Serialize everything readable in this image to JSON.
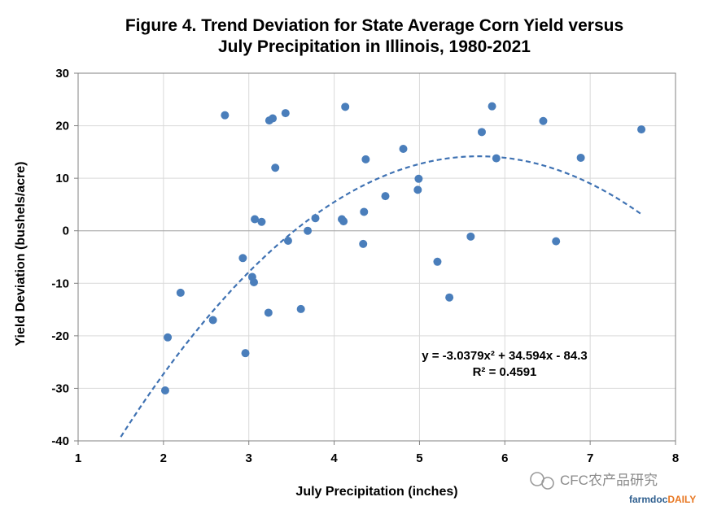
{
  "chart_data": {
    "type": "scatter",
    "title_line1": "Figure 4. Trend Deviation for State Average Corn Yield versus",
    "title_line2": "July Precipitation in Illinois, 1980-2021",
    "xlabel": "July Precipitation (inches)",
    "ylabel": "Yield Deviation (bushels/acre)",
    "xlim": [
      1,
      8
    ],
    "ylim": [
      -40,
      30
    ],
    "xticks": [
      1,
      2,
      3,
      4,
      5,
      6,
      7,
      8
    ],
    "yticks": [
      -40,
      -30,
      -20,
      -10,
      0,
      10,
      20,
      30
    ],
    "grid": true,
    "marker_color": "#4a7ebb",
    "trendline_color": "#3f72b3",
    "points": [
      [
        2.02,
        -30.4
      ],
      [
        2.05,
        -20.3
      ],
      [
        2.2,
        -11.8
      ],
      [
        2.58,
        -17.0
      ],
      [
        2.72,
        22.0
      ],
      [
        2.93,
        -5.2
      ],
      [
        2.96,
        -23.3
      ],
      [
        3.04,
        -8.8
      ],
      [
        3.06,
        -9.8
      ],
      [
        3.07,
        2.2
      ],
      [
        3.15,
        1.7
      ],
      [
        3.23,
        -15.6
      ],
      [
        3.24,
        21.0
      ],
      [
        3.28,
        21.4
      ],
      [
        3.31,
        12.0
      ],
      [
        3.43,
        22.4
      ],
      [
        3.46,
        -1.9
      ],
      [
        3.61,
        -14.9
      ],
      [
        3.69,
        0.0
      ],
      [
        3.78,
        2.4
      ],
      [
        4.09,
        2.2
      ],
      [
        4.11,
        1.8
      ],
      [
        4.13,
        23.6
      ],
      [
        4.34,
        -2.5
      ],
      [
        4.35,
        3.6
      ],
      [
        4.37,
        13.6
      ],
      [
        4.6,
        6.6
      ],
      [
        4.81,
        15.6
      ],
      [
        4.98,
        7.8
      ],
      [
        4.99,
        9.9
      ],
      [
        5.21,
        -5.9
      ],
      [
        5.35,
        -12.7
      ],
      [
        5.6,
        -1.1
      ],
      [
        5.73,
        18.8
      ],
      [
        5.85,
        23.7
      ],
      [
        5.9,
        13.8
      ],
      [
        6.45,
        20.9
      ],
      [
        6.6,
        -2.0
      ],
      [
        6.89,
        13.9
      ],
      [
        7.6,
        19.3
      ]
    ],
    "trendline": {
      "a": -3.0379,
      "b": 34.594,
      "c": -84.3,
      "x_start": 1.5,
      "x_end": 7.6
    },
    "equation": "y = -3.0379x² + 34.594x - 84.3",
    "r_squared": "R² = 0.4591"
  },
  "watermark": {
    "text": "CFC农产品研究",
    "brand_a": "farmdoc",
    "brand_b": "DAILY",
    "brand_color_a": "#2e5e8e",
    "brand_color_b": "#e87722"
  }
}
